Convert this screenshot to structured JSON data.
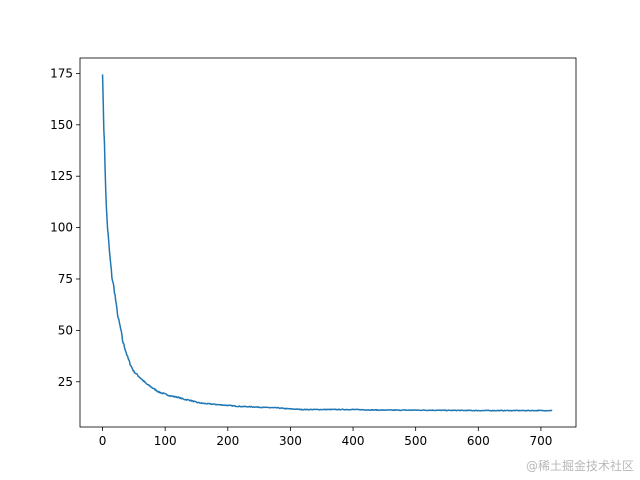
{
  "chart_data": {
    "type": "line",
    "title": "",
    "xlabel": "",
    "ylabel": "",
    "xlim": [
      -36,
      756
    ],
    "ylim": [
      3.0,
      182.5
    ],
    "xticks": [
      0,
      100,
      200,
      300,
      400,
      500,
      600,
      700
    ],
    "xtick_labels": [
      "0",
      "100",
      "200",
      "300",
      "400",
      "500",
      "600",
      "700"
    ],
    "yticks": [
      25,
      50,
      75,
      100,
      125,
      150,
      175
    ],
    "ytick_labels": [
      "25",
      "50",
      "75",
      "100",
      "125",
      "150",
      "175"
    ],
    "grid": false,
    "legend": "none",
    "series": [
      {
        "color": "#1f77b4",
        "x": [
          0,
          2,
          4,
          6,
          8,
          10,
          12,
          15,
          18,
          20,
          22,
          25,
          28,
          30,
          32,
          35,
          38,
          40,
          45,
          50,
          55,
          60,
          65,
          70,
          75,
          80,
          90,
          100,
          110,
          120,
          130,
          140,
          150,
          160,
          180,
          200,
          220,
          240,
          260,
          280,
          290,
          300,
          320,
          350,
          400,
          430,
          450,
          500,
          550,
          600,
          650,
          700,
          718
        ],
        "y": [
          174.5,
          150,
          130,
          110,
          100,
          92,
          85,
          76,
          71,
          67,
          62,
          56,
          52,
          49,
          45,
          42,
          39,
          37,
          33,
          30,
          28.5,
          27,
          25.5,
          24,
          23,
          22,
          20,
          19,
          18,
          17.5,
          16.5,
          16,
          15,
          14.5,
          14,
          13.5,
          13,
          12.8,
          12.5,
          12.3,
          12,
          11.8,
          11.5,
          11.5,
          11.5,
          11.3,
          11.2,
          11.2,
          11.1,
          11,
          11,
          11,
          11
        ]
      }
    ]
  },
  "watermark": "@稀土掘金技术社区"
}
